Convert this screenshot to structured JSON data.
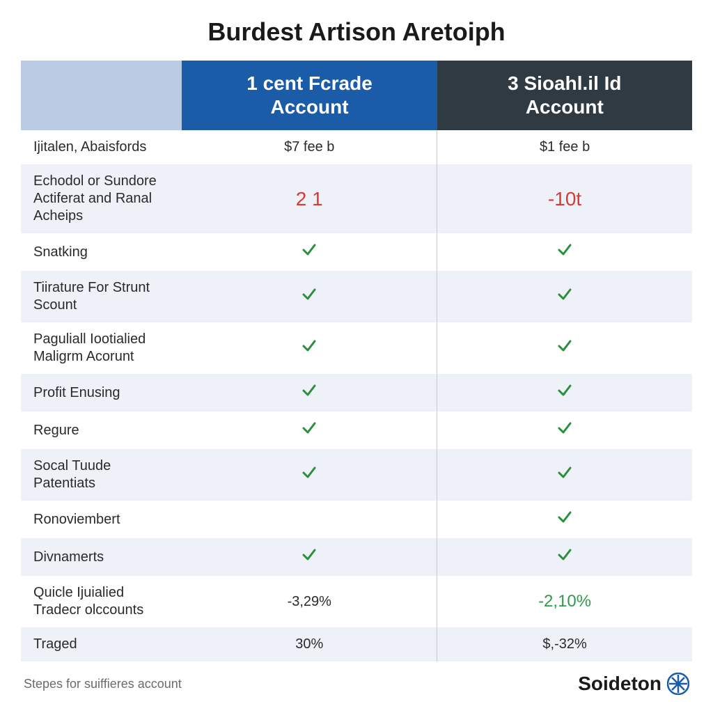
{
  "title": "Burdest Artison Aretoiph",
  "columns": {
    "a_line1": "1 cent Fcrade",
    "a_line2": "Account",
    "b_line1": "3 Sioahl.il Id",
    "b_line2": "Account"
  },
  "rows": [
    {
      "label": "Ijitalen, Abaisfords",
      "a": "$7 fee b",
      "b": "$1 fee b",
      "a_type": "text",
      "b_type": "text"
    },
    {
      "label": "Echodol or Sundore Actiferat and Ranal Acheips",
      "a": "2 1",
      "b": "-10t",
      "a_type": "red",
      "b_type": "red"
    },
    {
      "label": "Snatking",
      "a": "check",
      "b": "check",
      "a_type": "check",
      "b_type": "check"
    },
    {
      "label": "Tiirature For Strunt Scount",
      "a": "check",
      "b": "check",
      "a_type": "check",
      "b_type": "check"
    },
    {
      "label": "Paguliall Iootialied Maligrm Acorunt",
      "a": "check",
      "b": "check",
      "a_type": "check",
      "b_type": "check"
    },
    {
      "label": "Profit Enusing",
      "a": "check",
      "b": "check",
      "a_type": "check",
      "b_type": "check"
    },
    {
      "label": "Regure",
      "a": "check",
      "b": "check",
      "a_type": "check",
      "b_type": "check"
    },
    {
      "label": "Socal Tuude Patentiats",
      "a": "check",
      "b": "check",
      "a_type": "check",
      "b_type": "check"
    },
    {
      "label": "Ronoviembert",
      "a": "",
      "b": "check",
      "a_type": "empty",
      "b_type": "check"
    },
    {
      "label": "Divnamerts",
      "a": "check",
      "b": "check",
      "a_type": "check",
      "b_type": "check"
    },
    {
      "label": "Quicle Ijuialied Tradecr olccounts",
      "a": "-3,29%",
      "b": "-2,10%",
      "a_type": "text",
      "b_type": "green"
    },
    {
      "label": "Traged",
      "a": "30%",
      "b": "$,-32%",
      "a_type": "text",
      "b_type": "text"
    }
  ],
  "footnote": "Stepes for suiffieres account",
  "brand": "Soideton",
  "styles": {
    "colors": {
      "header_empty_bg": "#b9cce3",
      "header_a_bg": "#1a5ca8",
      "header_b_bg": "#2f3a42",
      "header_text": "#ffffff",
      "row_even_bg": "#eef2f8",
      "row_odd_bg": "#ffffff",
      "text": "#2a2a2a",
      "red": "#d63a36",
      "green": "#2e9b4a",
      "check_stroke": "#2a8f3a",
      "footnote": "#6b6b6b",
      "brand_icon": "#1a5ca8",
      "divider": "#c9c9c9"
    },
    "column_widths": [
      "24%",
      "38%",
      "38%"
    ],
    "title_fontsize": 36,
    "header_fontsize": 28,
    "label_fontsize": 19,
    "value_fontsize": 22,
    "red_fontsize": 28,
    "green_fontsize": 24
  }
}
